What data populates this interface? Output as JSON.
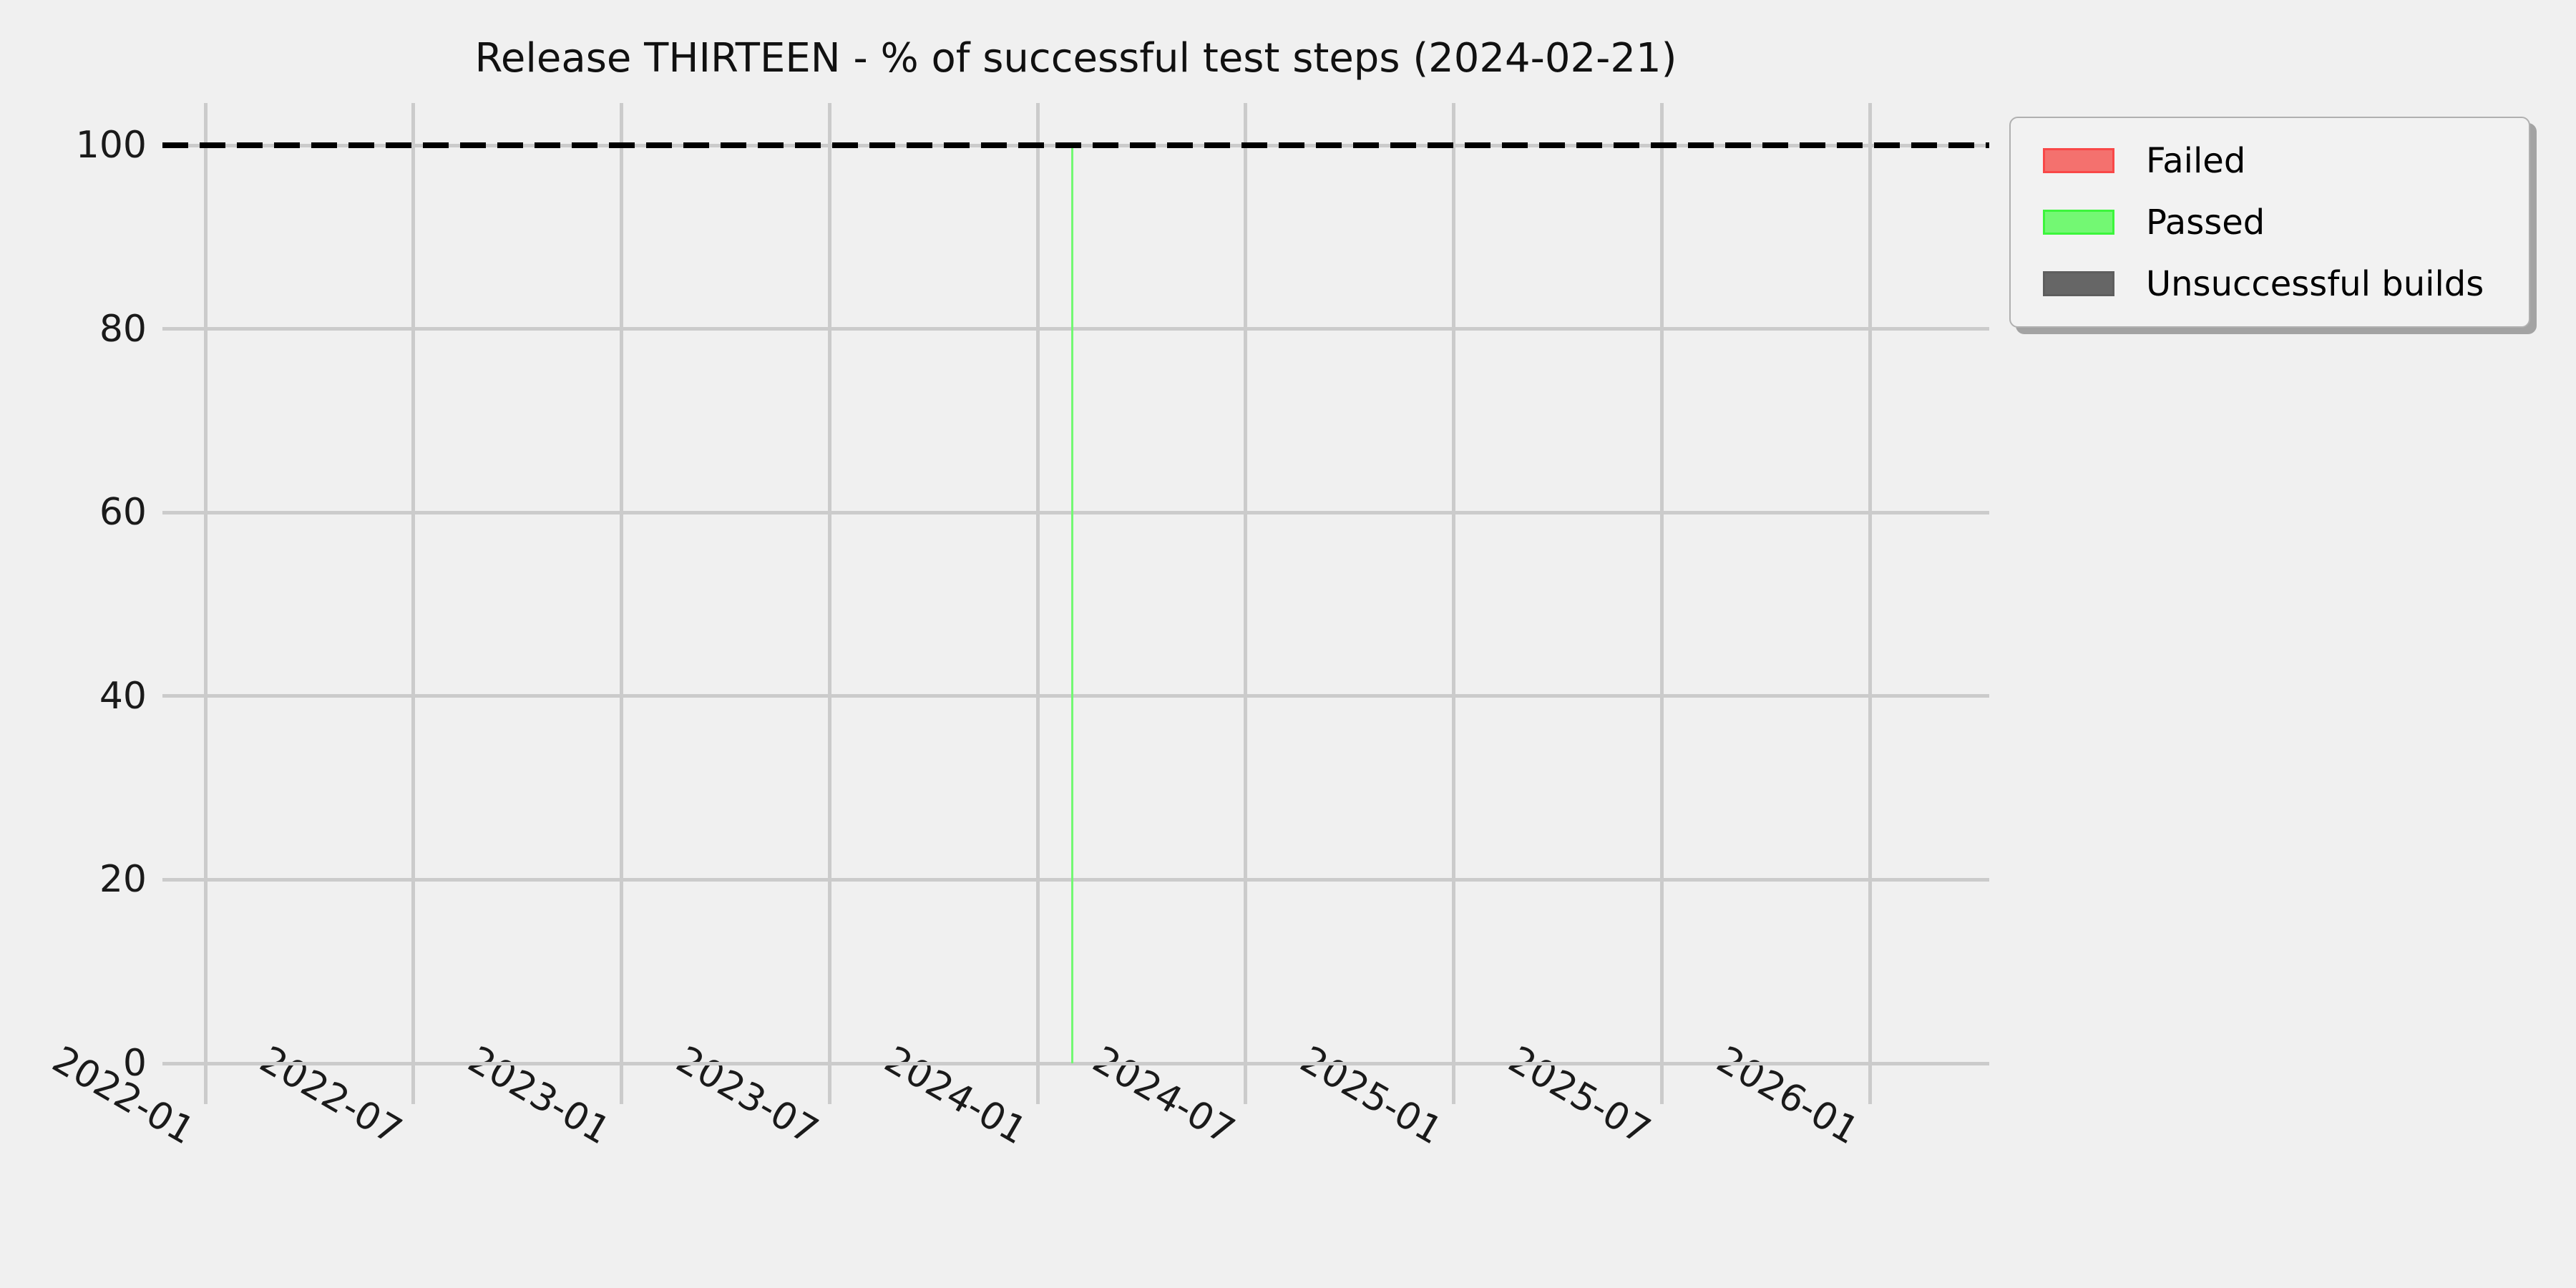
{
  "figure": {
    "title": "Release THIRTEEN - % of successful test steps (2024-02-21)",
    "background": "#f0f0f0"
  },
  "legend": {
    "position": "upper-right",
    "items": [
      {
        "label": "Failed",
        "fill": "#f4716e",
        "edge": "#f94848"
      },
      {
        "label": "Passed",
        "fill": "#73f873",
        "edge": "#3cf63c"
      },
      {
        "label": "Unsuccessful builds",
        "fill": "#666666",
        "edge": "#5e5e5e"
      }
    ]
  },
  "chart_data": {
    "type": "bar",
    "title": "Release THIRTEEN - % of successful test steps (2024-02-21)",
    "xlabel": "",
    "ylabel": "",
    "x_axis": {
      "tick_labels": [
        "2022-01",
        "2022-07",
        "2023-01",
        "2023-07",
        "2024-01",
        "2024-07",
        "2025-01",
        "2025-07",
        "2026-01"
      ],
      "range_start": "2021-11-24",
      "range_end": "2026-04-14",
      "tick_rotation_deg": 30
    },
    "y_axis": {
      "ticks": [
        0,
        20,
        40,
        60,
        80,
        100
      ],
      "ylim": [
        -4.5,
        104.6
      ]
    },
    "grid": true,
    "series": [
      {
        "name": "Failed",
        "color": "#f4716e",
        "points": []
      },
      {
        "name": "Passed",
        "color": "#73f873",
        "points": [
          {
            "x": "2024-02-01",
            "y": 100
          }
        ]
      },
      {
        "name": "Unsuccessful builds",
        "color": "#666666",
        "points": []
      }
    ],
    "reference_line": {
      "y": 100,
      "style": "dashed",
      "color": "#000000"
    }
  },
  "colors": {
    "grid": "#cbcbcb",
    "tick_label": "#1a1a1a",
    "legend_bg": "#f2f2f2",
    "legend_border": "#b0b0b0",
    "legend_shadow": "#a3a3a3"
  }
}
